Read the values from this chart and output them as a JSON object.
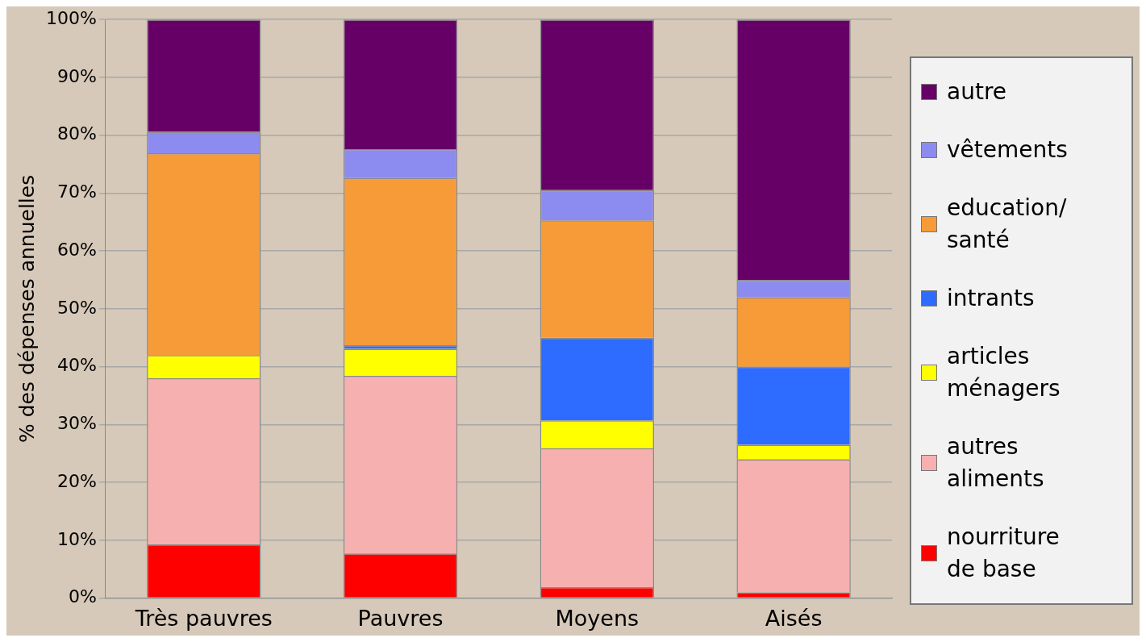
{
  "chart_data": {
    "type": "bar",
    "stacked": true,
    "ylabel": "% des dépenses annuelles",
    "categories": [
      "Très pauvres",
      "Pauvres",
      "Moyens",
      "Aisés"
    ],
    "series": [
      {
        "name": "nourriture de base",
        "color": "#ff0000",
        "values": [
          9.3,
          7.7,
          1.9,
          1
        ]
      },
      {
        "name": "autres aliments",
        "color": "#f6b0b0",
        "values": [
          28.7,
          30.7,
          24,
          23
        ]
      },
      {
        "name": "articles ménagers",
        "color": "#ffff00",
        "values": [
          4,
          4.7,
          4.8,
          2.5
        ]
      },
      {
        "name": "intrants",
        "color": "#2e6bff",
        "values": [
          0,
          0.6,
          14.3,
          13.5
        ]
      },
      {
        "name": "education/ santé",
        "color": "#f79a38",
        "values": [
          34.9,
          28.9,
          20.3,
          12
        ]
      },
      {
        "name": "vêtements",
        "color": "#8c8cf0",
        "values": [
          3.7,
          5,
          5.2,
          3
        ]
      },
      {
        "name": "autre",
        "color": "#660066",
        "values": [
          19.4,
          22.4,
          29.5,
          45
        ]
      }
    ],
    "ylim": [
      0,
      100
    ],
    "yticks": [
      {
        "value": 0,
        "label": "0%"
      },
      {
        "value": 10,
        "label": "10%"
      },
      {
        "value": 20,
        "label": "20%"
      },
      {
        "value": 30,
        "label": "30%"
      },
      {
        "value": 40,
        "label": "40%"
      },
      {
        "value": 50,
        "label": "50%"
      },
      {
        "value": 60,
        "label": "60%"
      },
      {
        "value": 70,
        "label": "70%"
      },
      {
        "value": 80,
        "label": "80%"
      },
      {
        "value": 90,
        "label": "90%"
      },
      {
        "value": 100,
        "label": "100%"
      }
    ],
    "grid": "y",
    "legend": "right"
  }
}
